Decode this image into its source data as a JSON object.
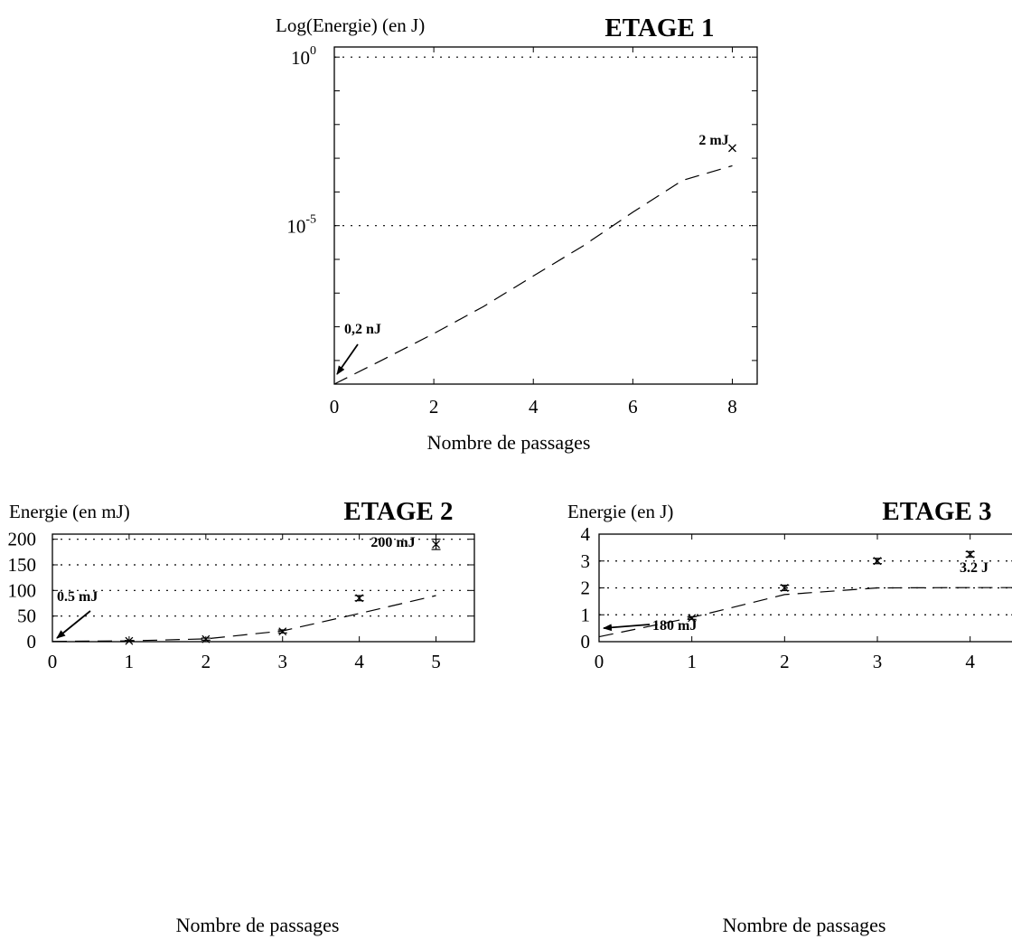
{
  "chart_data": [
    {
      "type": "line",
      "title": "ETAGE 1",
      "ylabel": "Log(Energie) (en J)",
      "xlabel": "Nombre de passages",
      "yscale": "log",
      "xlim": [
        0,
        8.5
      ],
      "ylim_log10": [
        -9.7,
        0.3
      ],
      "x_ticks": [
        "0",
        "2",
        "4",
        "6",
        "8"
      ],
      "y_ticks": [
        {
          "base": "10",
          "exp": "0"
        },
        {
          "base": "10",
          "exp": "-5"
        }
      ],
      "grid": "horizontal-dotted",
      "series": [
        {
          "style": "dashed-line",
          "x": [
            0,
            1,
            2,
            3,
            4,
            5,
            6,
            7,
            8
          ],
          "y": [
            2e-10,
            1.1e-09,
            6.3e-09,
            4e-08,
            3.2e-07,
            2.5e-06,
            2.5e-05,
            0.00022,
            0.0006
          ]
        },
        {
          "style": "x-marker",
          "x": [
            8
          ],
          "y": [
            0.002
          ]
        }
      ],
      "annotations": [
        {
          "text": "2  mJ",
          "x": 8,
          "y": 0.002
        },
        {
          "text": "0,2  nJ",
          "x": 0,
          "y": 2e-10,
          "arrow": true
        }
      ]
    },
    {
      "type": "line",
      "title": "ETAGE 2",
      "ylabel": "Energie (en mJ)",
      "xlabel": "Nombre de passages",
      "xlim": [
        0,
        5.5
      ],
      "ylim": [
        0,
        210
      ],
      "x_ticks": [
        "0",
        "1",
        "2",
        "3",
        "4",
        "5"
      ],
      "y_ticks": [
        "0",
        "50",
        "100",
        "150",
        "200"
      ],
      "grid": "horizontal-dotted",
      "series": [
        {
          "style": "dashed-line",
          "x": [
            0,
            1,
            2,
            3,
            4,
            5
          ],
          "y": [
            0.5,
            1.5,
            5.5,
            21,
            55,
            90
          ]
        },
        {
          "style": "x-marker-errorbar",
          "x": [
            1,
            2,
            3,
            4,
            5
          ],
          "y": [
            1.5,
            5,
            20,
            85,
            190
          ],
          "err": [
            0.8,
            2,
            3,
            5,
            10
          ]
        }
      ],
      "annotations": [
        {
          "text": "200 mJ",
          "x": 5,
          "y": 190
        },
        {
          "text": "0.5  mJ",
          "x": 0,
          "y": 0.5,
          "arrow": true
        }
      ]
    },
    {
      "type": "line",
      "title": "ETAGE 3",
      "ylabel": "Energie (en J)",
      "xlabel": "Nombre de passages",
      "xlim": [
        0,
        4.5
      ],
      "ylim": [
        0,
        4
      ],
      "x_ticks": [
        "0",
        "1",
        "2",
        "3",
        "4"
      ],
      "y_ticks": [
        "0",
        "1",
        "2",
        "3",
        "4"
      ],
      "grid": "horizontal-dotted",
      "series": [
        {
          "style": "dashed-line",
          "x": [
            0,
            1,
            2,
            3,
            4,
            4.5
          ],
          "y": [
            0.18,
            0.9,
            1.75,
            2.0,
            2.01,
            2.01
          ]
        },
        {
          "style": "x-marker-errorbar",
          "x": [
            1,
            2,
            3,
            4
          ],
          "y": [
            0.88,
            2.0,
            3.0,
            3.25
          ],
          "err": [
            0.05,
            0.1,
            0.1,
            0.1
          ]
        }
      ],
      "annotations": [
        {
          "text": "3.2 J",
          "x": 4,
          "y": 3.25
        },
        {
          "text": "180 mJ",
          "x": 0,
          "y": 0.18,
          "arrow": true
        }
      ]
    }
  ]
}
